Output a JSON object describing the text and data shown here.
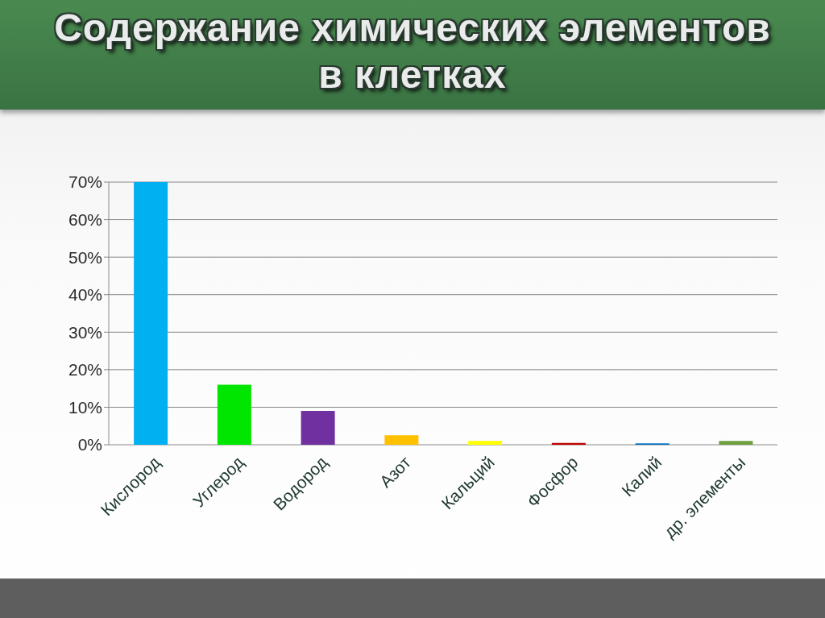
{
  "chart_data": {
    "type": "bar",
    "title": "Содержание химических элементов в клетках",
    "categories": [
      "Кислород",
      "Углерод",
      "Водород",
      "Азот",
      "Кальций",
      "Фосфор",
      "Калий",
      "др. элементы"
    ],
    "values": [
      70,
      16,
      9,
      2.5,
      1,
      0.5,
      0.4,
      1
    ],
    "colors": [
      "#00b0f0",
      "#00e600",
      "#7030a0",
      "#ffc000",
      "#ffff00",
      "#c00000",
      "#0070c0",
      "#70a040"
    ],
    "ylim": [
      0,
      70
    ],
    "yticks": [
      {
        "value": 0,
        "label": "0%"
      },
      {
        "value": 10,
        "label": "10%"
      },
      {
        "value": 20,
        "label": "20%"
      },
      {
        "value": 30,
        "label": "30%"
      },
      {
        "value": 40,
        "label": "40%"
      },
      {
        "value": 50,
        "label": "50%"
      },
      {
        "value": 60,
        "label": "60%"
      },
      {
        "value": 70,
        "label": "70%"
      }
    ],
    "grid": "y"
  }
}
